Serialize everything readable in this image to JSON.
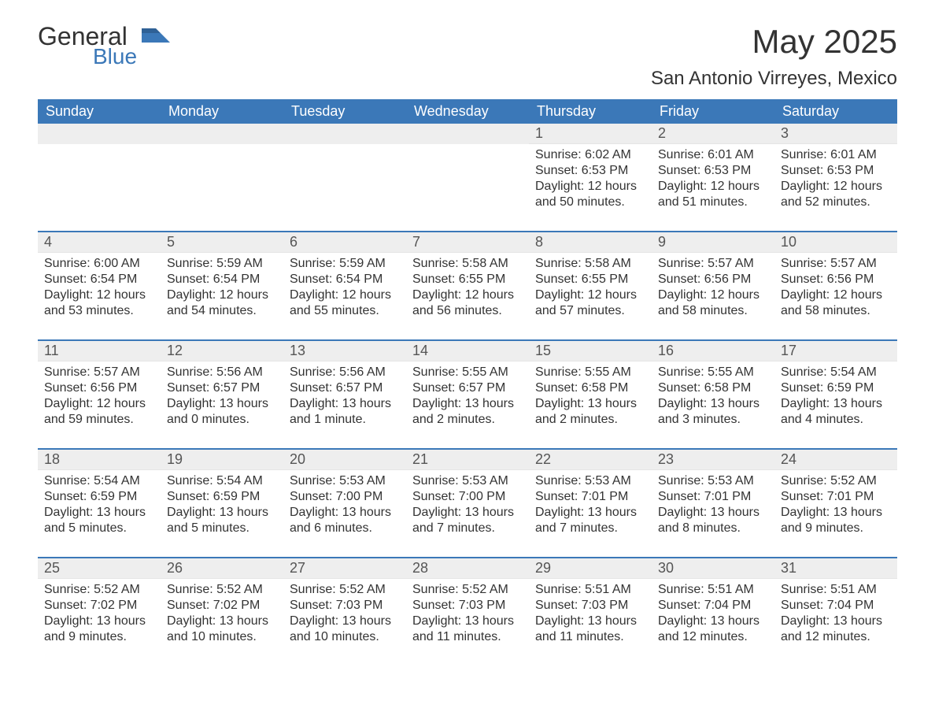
{
  "logo": {
    "general": "General",
    "blue": "Blue"
  },
  "title": "May 2025",
  "location": "San Antonio Virreyes, Mexico",
  "colors": {
    "header_bg": "#3b78b8",
    "header_text": "#ffffff",
    "daynum_bg": "#eeeeee",
    "text": "#333333",
    "rule": "#3b78b8"
  },
  "days_of_week": [
    "Sunday",
    "Monday",
    "Tuesday",
    "Wednesday",
    "Thursday",
    "Friday",
    "Saturday"
  ],
  "weeks": [
    [
      {
        "n": null
      },
      {
        "n": null
      },
      {
        "n": null
      },
      {
        "n": null
      },
      {
        "n": "1",
        "sunrise": "Sunrise: 6:02 AM",
        "sunset": "Sunset: 6:53 PM",
        "daylight": "Daylight: 12 hours and 50 minutes."
      },
      {
        "n": "2",
        "sunrise": "Sunrise: 6:01 AM",
        "sunset": "Sunset: 6:53 PM",
        "daylight": "Daylight: 12 hours and 51 minutes."
      },
      {
        "n": "3",
        "sunrise": "Sunrise: 6:01 AM",
        "sunset": "Sunset: 6:53 PM",
        "daylight": "Daylight: 12 hours and 52 minutes."
      }
    ],
    [
      {
        "n": "4",
        "sunrise": "Sunrise: 6:00 AM",
        "sunset": "Sunset: 6:54 PM",
        "daylight": "Daylight: 12 hours and 53 minutes."
      },
      {
        "n": "5",
        "sunrise": "Sunrise: 5:59 AM",
        "sunset": "Sunset: 6:54 PM",
        "daylight": "Daylight: 12 hours and 54 minutes."
      },
      {
        "n": "6",
        "sunrise": "Sunrise: 5:59 AM",
        "sunset": "Sunset: 6:54 PM",
        "daylight": "Daylight: 12 hours and 55 minutes."
      },
      {
        "n": "7",
        "sunrise": "Sunrise: 5:58 AM",
        "sunset": "Sunset: 6:55 PM",
        "daylight": "Daylight: 12 hours and 56 minutes."
      },
      {
        "n": "8",
        "sunrise": "Sunrise: 5:58 AM",
        "sunset": "Sunset: 6:55 PM",
        "daylight": "Daylight: 12 hours and 57 minutes."
      },
      {
        "n": "9",
        "sunrise": "Sunrise: 5:57 AM",
        "sunset": "Sunset: 6:56 PM",
        "daylight": "Daylight: 12 hours and 58 minutes."
      },
      {
        "n": "10",
        "sunrise": "Sunrise: 5:57 AM",
        "sunset": "Sunset: 6:56 PM",
        "daylight": "Daylight: 12 hours and 58 minutes."
      }
    ],
    [
      {
        "n": "11",
        "sunrise": "Sunrise: 5:57 AM",
        "sunset": "Sunset: 6:56 PM",
        "daylight": "Daylight: 12 hours and 59 minutes."
      },
      {
        "n": "12",
        "sunrise": "Sunrise: 5:56 AM",
        "sunset": "Sunset: 6:57 PM",
        "daylight": "Daylight: 13 hours and 0 minutes."
      },
      {
        "n": "13",
        "sunrise": "Sunrise: 5:56 AM",
        "sunset": "Sunset: 6:57 PM",
        "daylight": "Daylight: 13 hours and 1 minute."
      },
      {
        "n": "14",
        "sunrise": "Sunrise: 5:55 AM",
        "sunset": "Sunset: 6:57 PM",
        "daylight": "Daylight: 13 hours and 2 minutes."
      },
      {
        "n": "15",
        "sunrise": "Sunrise: 5:55 AM",
        "sunset": "Sunset: 6:58 PM",
        "daylight": "Daylight: 13 hours and 2 minutes."
      },
      {
        "n": "16",
        "sunrise": "Sunrise: 5:55 AM",
        "sunset": "Sunset: 6:58 PM",
        "daylight": "Daylight: 13 hours and 3 minutes."
      },
      {
        "n": "17",
        "sunrise": "Sunrise: 5:54 AM",
        "sunset": "Sunset: 6:59 PM",
        "daylight": "Daylight: 13 hours and 4 minutes."
      }
    ],
    [
      {
        "n": "18",
        "sunrise": "Sunrise: 5:54 AM",
        "sunset": "Sunset: 6:59 PM",
        "daylight": "Daylight: 13 hours and 5 minutes."
      },
      {
        "n": "19",
        "sunrise": "Sunrise: 5:54 AM",
        "sunset": "Sunset: 6:59 PM",
        "daylight": "Daylight: 13 hours and 5 minutes."
      },
      {
        "n": "20",
        "sunrise": "Sunrise: 5:53 AM",
        "sunset": "Sunset: 7:00 PM",
        "daylight": "Daylight: 13 hours and 6 minutes."
      },
      {
        "n": "21",
        "sunrise": "Sunrise: 5:53 AM",
        "sunset": "Sunset: 7:00 PM",
        "daylight": "Daylight: 13 hours and 7 minutes."
      },
      {
        "n": "22",
        "sunrise": "Sunrise: 5:53 AM",
        "sunset": "Sunset: 7:01 PM",
        "daylight": "Daylight: 13 hours and 7 minutes."
      },
      {
        "n": "23",
        "sunrise": "Sunrise: 5:53 AM",
        "sunset": "Sunset: 7:01 PM",
        "daylight": "Daylight: 13 hours and 8 minutes."
      },
      {
        "n": "24",
        "sunrise": "Sunrise: 5:52 AM",
        "sunset": "Sunset: 7:01 PM",
        "daylight": "Daylight: 13 hours and 9 minutes."
      }
    ],
    [
      {
        "n": "25",
        "sunrise": "Sunrise: 5:52 AM",
        "sunset": "Sunset: 7:02 PM",
        "daylight": "Daylight: 13 hours and 9 minutes."
      },
      {
        "n": "26",
        "sunrise": "Sunrise: 5:52 AM",
        "sunset": "Sunset: 7:02 PM",
        "daylight": "Daylight: 13 hours and 10 minutes."
      },
      {
        "n": "27",
        "sunrise": "Sunrise: 5:52 AM",
        "sunset": "Sunset: 7:03 PM",
        "daylight": "Daylight: 13 hours and 10 minutes."
      },
      {
        "n": "28",
        "sunrise": "Sunrise: 5:52 AM",
        "sunset": "Sunset: 7:03 PM",
        "daylight": "Daylight: 13 hours and 11 minutes."
      },
      {
        "n": "29",
        "sunrise": "Sunrise: 5:51 AM",
        "sunset": "Sunset: 7:03 PM",
        "daylight": "Daylight: 13 hours and 11 minutes."
      },
      {
        "n": "30",
        "sunrise": "Sunrise: 5:51 AM",
        "sunset": "Sunset: 7:04 PM",
        "daylight": "Daylight: 13 hours and 12 minutes."
      },
      {
        "n": "31",
        "sunrise": "Sunrise: 5:51 AM",
        "sunset": "Sunset: 7:04 PM",
        "daylight": "Daylight: 13 hours and 12 minutes."
      }
    ]
  ]
}
